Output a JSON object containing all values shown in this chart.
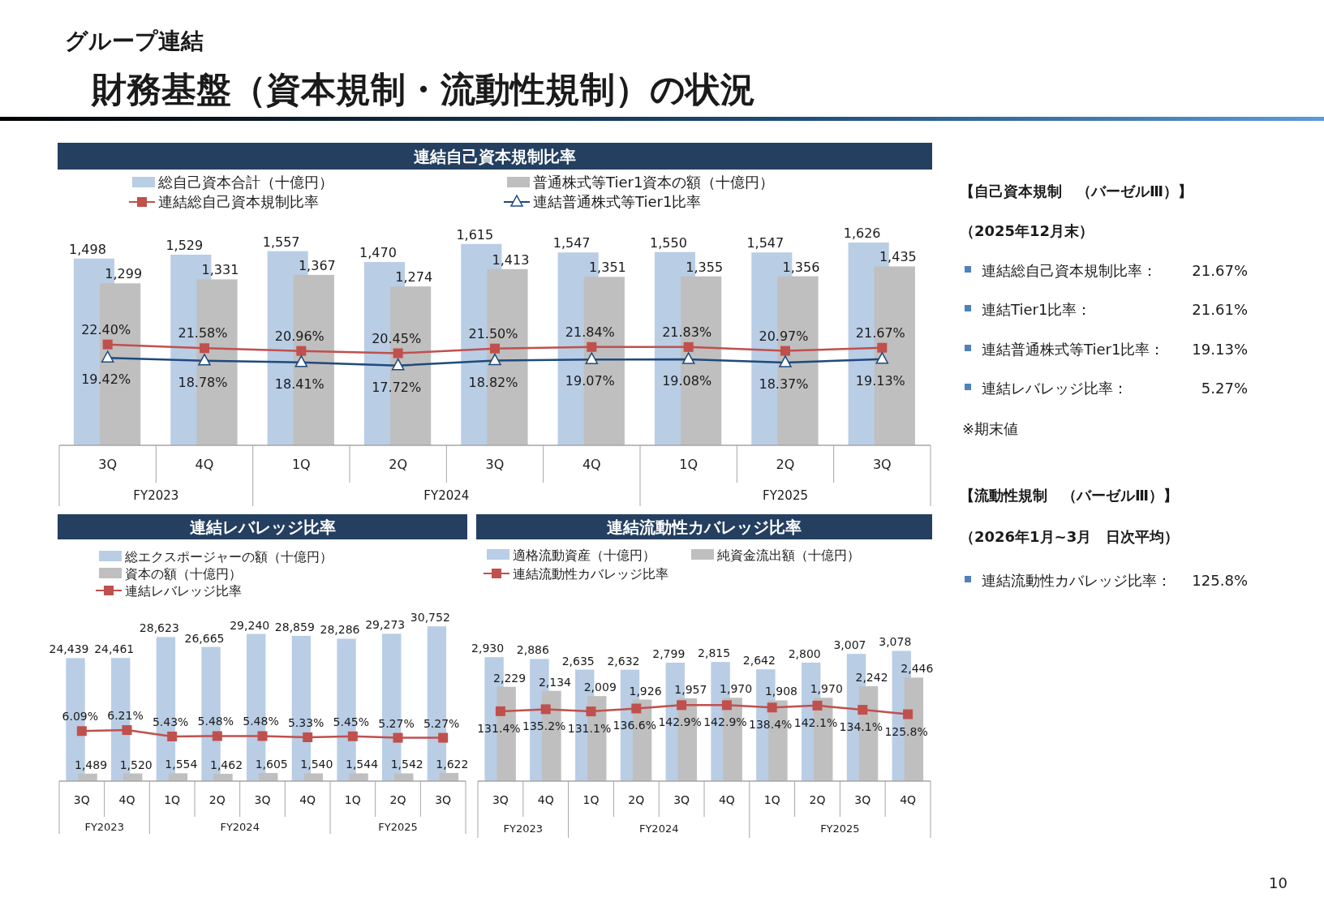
{
  "chart_data": [
    {
      "type": "bar",
      "title": "連結自己資本規制比率",
      "categories": [
        "3Q",
        "4Q",
        "1Q",
        "2Q",
        "3Q",
        "4Q",
        "1Q",
        "2Q",
        "3Q"
      ],
      "annotations": [
        "FY2023",
        "FY2024",
        "FY2025"
      ],
      "legend": "top",
      "series": [
        {
          "name": "総自己資本合計（十億円）",
          "color": "#b9cde5",
          "values": [
            1498,
            1529,
            1557,
            1470,
            1615,
            1547,
            1550,
            1547,
            1626
          ],
          "value_labels": [
            "1,498",
            "1,529",
            "1,557",
            "1,470",
            "1,615",
            "1,547",
            "1,550",
            "1,547",
            "1,626"
          ]
        },
        {
          "name": "普通株式等Tier1資本の額（十億円）",
          "color": "#bfbfbf",
          "values": [
            1299,
            1331,
            1367,
            1274,
            1413,
            1351,
            1355,
            1356,
            1435
          ],
          "value_labels": [
            "1,299",
            "1,331",
            "1,367",
            "1,274",
            "1,413",
            "1,351",
            "1,355",
            "1,356",
            "1,435"
          ]
        },
        {
          "name": "連結総自己資本規制比率",
          "type": "line",
          "axis": "y2",
          "marker": "square",
          "color": "#c0504d",
          "values": [
            22.4,
            21.58,
            20.96,
            20.45,
            21.5,
            21.84,
            21.83,
            20.97,
            21.67
          ],
          "value_labels": [
            "22.40%",
            "21.58%",
            "20.96%",
            "20.45%",
            "21.50%",
            "21.84%",
            "21.83%",
            "20.97%",
            "21.67%"
          ]
        },
        {
          "name": "連結普通株式等Tier1比率",
          "type": "line",
          "axis": "y2",
          "marker": "triangle",
          "color": "#1f497d",
          "values": [
            19.42,
            18.78,
            18.41,
            17.72,
            18.82,
            19.07,
            19.08,
            18.37,
            19.13
          ],
          "value_labels": [
            "19.42%",
            "18.78%",
            "18.41%",
            "17.72%",
            "18.82%",
            "19.07%",
            "19.08%",
            "18.37%",
            "19.13%"
          ]
        }
      ]
    },
    {
      "type": "bar",
      "title": "連結レバレッジ比率",
      "categories": [
        "3Q",
        "4Q",
        "1Q",
        "2Q",
        "3Q",
        "4Q",
        "1Q",
        "2Q",
        "3Q"
      ],
      "annotations": [
        "FY2023",
        "FY2024",
        "FY2025"
      ],
      "legend": "top",
      "series": [
        {
          "name": "総エクスポージャーの額（十億円）",
          "color": "#b9cde5",
          "values": [
            24439,
            24461,
            28623,
            26665,
            29240,
            28859,
            28286,
            29273,
            30752
          ],
          "value_labels": [
            "24,439",
            "24,461",
            "28,623",
            "26,665",
            "29,240",
            "28,859",
            "28,286",
            "29,273",
            "30,752"
          ]
        },
        {
          "name": "資本の額（十億円）",
          "color": "#bfbfbf",
          "values": [
            1489,
            1520,
            1554,
            1462,
            1605,
            1540,
            1544,
            1542,
            1622
          ],
          "value_labels": [
            "1,489",
            "1,520",
            "1,554",
            "1,462",
            "1,605",
            "1,540",
            "1,544",
            "1,542",
            "1,622"
          ]
        },
        {
          "name": "連結レバレッジ比率",
          "type": "line",
          "axis": "y2",
          "marker": "square",
          "color": "#c0504d",
          "values": [
            6.09,
            6.21,
            5.43,
            5.48,
            5.48,
            5.33,
            5.45,
            5.27,
            5.27
          ],
          "value_labels": [
            "6.09%",
            "6.21%",
            "5.43%",
            "5.48%",
            "5.48%",
            "5.33%",
            "5.45%",
            "5.27%",
            "5.27%"
          ]
        }
      ]
    },
    {
      "type": "bar",
      "title": "連結流動性カバレッジ比率",
      "categories": [
        "3Q",
        "4Q",
        "1Q",
        "2Q",
        "3Q",
        "4Q",
        "1Q",
        "2Q",
        "3Q",
        "4Q"
      ],
      "annotations": [
        "FY2023",
        "FY2024",
        "FY2025"
      ],
      "legend": "top",
      "series": [
        {
          "name": "適格流動資産（十億円）",
          "color": "#b9cde5",
          "values": [
            2930,
            2886,
            2635,
            2632,
            2799,
            2815,
            2642,
            2800,
            3007,
            3078
          ],
          "value_labels": [
            "2,930",
            "2,886",
            "2,635",
            "2,632",
            "2,799",
            "2,815",
            "2,642",
            "2,800",
            "3,007",
            "3,078"
          ]
        },
        {
          "name": "純資金流出額（十億円）",
          "color": "#bfbfbf",
          "values": [
            2229,
            2134,
            2009,
            1926,
            1957,
            1970,
            1908,
            1970,
            2242,
            2446
          ],
          "value_labels": [
            "2,229",
            "2,134",
            "2,009",
            "1,926",
            "1,957",
            "1,970",
            "1,908",
            "1,970",
            "2,242",
            "2,446"
          ]
        },
        {
          "name": "連結流動性カバレッジ比率",
          "type": "line",
          "axis": "y2",
          "marker": "square",
          "color": "#c0504d",
          "values": [
            131.4,
            135.2,
            131.1,
            136.6,
            142.9,
            142.9,
            138.4,
            142.1,
            134.1,
            125.8
          ],
          "value_labels": [
            "131.4%",
            "135.2%",
            "131.1%",
            "136.6%",
            "142.9%",
            "142.9%",
            "138.4%",
            "142.1%",
            "134.1%",
            "125.8%"
          ]
        }
      ]
    },
    {
      "type": "other",
      "title": "財務基盤（資本規制・流動性規制）の状況",
      "subtitle": "グループ連結",
      "annotations": [
        "【自己資本規制　（バーゼルⅢ）】",
        "（2025年12月末）",
        "連結総自己資本規制比率：",
        "21.67%",
        "連結Tier1比率：",
        "21.61%",
        "連結普通株式等Tier1比率：",
        "19.13%",
        "連結レバレッジ比率：",
        "5.27%",
        "※期末値",
        "【流動性規制　（バーゼルⅢ）】",
        "（2026年1月~3月　日次平均）",
        "連結流動性カバレッジ比率：",
        "125.8%",
        "10"
      ]
    }
  ]
}
